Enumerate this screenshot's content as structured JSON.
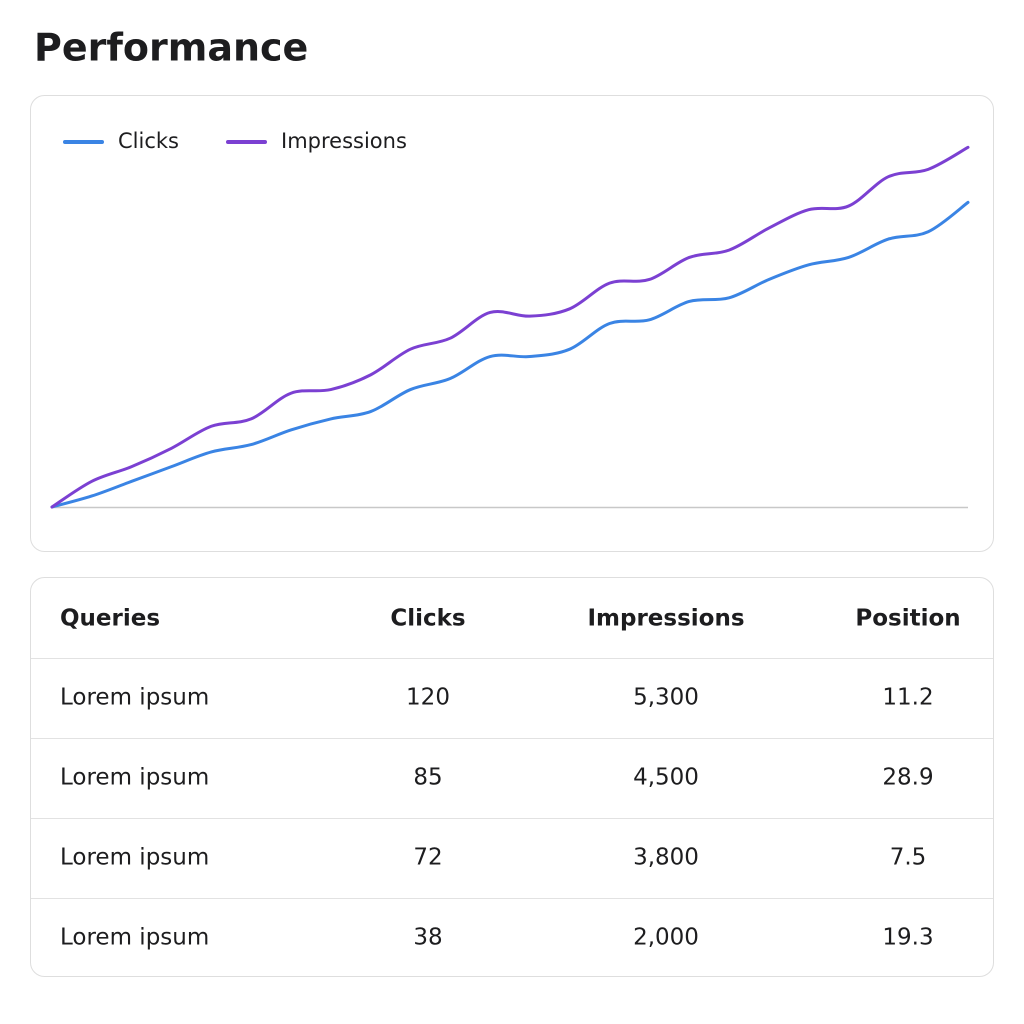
{
  "header": {
    "title": "Performance"
  },
  "chart_data": {
    "type": "line",
    "categories": [
      null,
      null,
      null,
      null,
      null,
      null,
      null,
      null,
      null,
      null,
      null,
      null,
      null,
      null,
      null,
      null,
      null,
      null,
      null,
      null,
      null,
      null,
      null,
      null
    ],
    "ylim": [
      0,
      100
    ],
    "legend": "top-left",
    "series": [
      {
        "name": "Clicks",
        "color": "#3a84e4",
        "values": [
          0,
          3,
          7,
          11,
          15,
          17,
          21,
          24,
          26,
          32,
          35,
          41,
          41,
          43,
          50,
          51,
          56,
          57,
          62,
          66,
          68,
          73,
          75,
          83
        ]
      },
      {
        "name": "Impressions",
        "color": "#7b40d2",
        "values": [
          0,
          7,
          11,
          16,
          22,
          24,
          31,
          32,
          36,
          43,
          46,
          53,
          52,
          54,
          61,
          62,
          68,
          70,
          76,
          81,
          82,
          90,
          92,
          98
        ]
      }
    ]
  },
  "table": {
    "header": [
      "Queries",
      "Clicks",
      "Impressions",
      "Position"
    ],
    "rows": [
      [
        "Lorem ipsum",
        "120",
        "5,300",
        "11.2"
      ],
      [
        "Lorem ipsum",
        "85",
        "4,500",
        "28.9"
      ],
      [
        "Lorem ipsum",
        "72",
        "3,800",
        "7.5"
      ],
      [
        "Lorem ipsum",
        "38",
        "2,000",
        "19.3"
      ]
    ]
  }
}
